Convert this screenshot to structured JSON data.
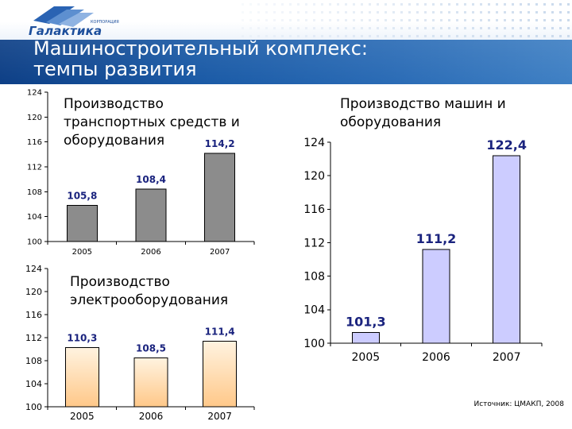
{
  "brand": {
    "name": "Галактика",
    "tagline": "КОРПОРАЦИЯ",
    "accent_color": "#1d4f9c",
    "band_color": "#1a5aa6"
  },
  "slide": {
    "title_line1": "Машиностроительный комплекс:",
    "title_line2": "темпы развития"
  },
  "source_note": "Источник: ЦМАКП, 2008",
  "chart_data": [
    {
      "id": "transport",
      "type": "bar",
      "title": "Производство транспортных средств и оборудования",
      "categories": [
        "2005",
        "2006",
        "2007"
      ],
      "values": [
        105.8,
        108.4,
        114.2
      ],
      "value_labels": [
        "105,8",
        "108,4",
        "114,2"
      ],
      "yticks": [
        "100",
        "104",
        "108",
        "112",
        "116",
        "120",
        "124"
      ],
      "ylim": [
        100,
        124
      ],
      "xlabel": "",
      "ylabel": "",
      "bar_color": "#8c8c8c",
      "label_color": "#1a237e",
      "grid": false
    },
    {
      "id": "electro",
      "type": "bar",
      "title": "Производство электрооборудования",
      "categories": [
        "2005",
        "2006",
        "2007"
      ],
      "values": [
        110.3,
        108.5,
        111.4
      ],
      "value_labels": [
        "110,3",
        "108,5",
        "111,4"
      ],
      "yticks": [
        "100",
        "104",
        "108",
        "112",
        "116",
        "120",
        "124"
      ],
      "ylim": [
        100,
        124
      ],
      "xlabel": "",
      "ylabel": "",
      "bar_color": "#ffd9a8",
      "label_color": "#1a237e",
      "grid": false
    },
    {
      "id": "machines",
      "type": "bar",
      "title": "Производство машин и оборудования",
      "categories": [
        "2005",
        "2006",
        "2007"
      ],
      "values": [
        101.3,
        111.2,
        122.4
      ],
      "value_labels": [
        "101,3",
        "111,2",
        "122,4"
      ],
      "yticks": [
        "100",
        "104",
        "108",
        "112",
        "116",
        "120",
        "124"
      ],
      "ylim": [
        100,
        124
      ],
      "xlabel": "",
      "ylabel": "",
      "bar_color": "#ccccff",
      "label_color": "#1a237e",
      "grid": false
    }
  ]
}
